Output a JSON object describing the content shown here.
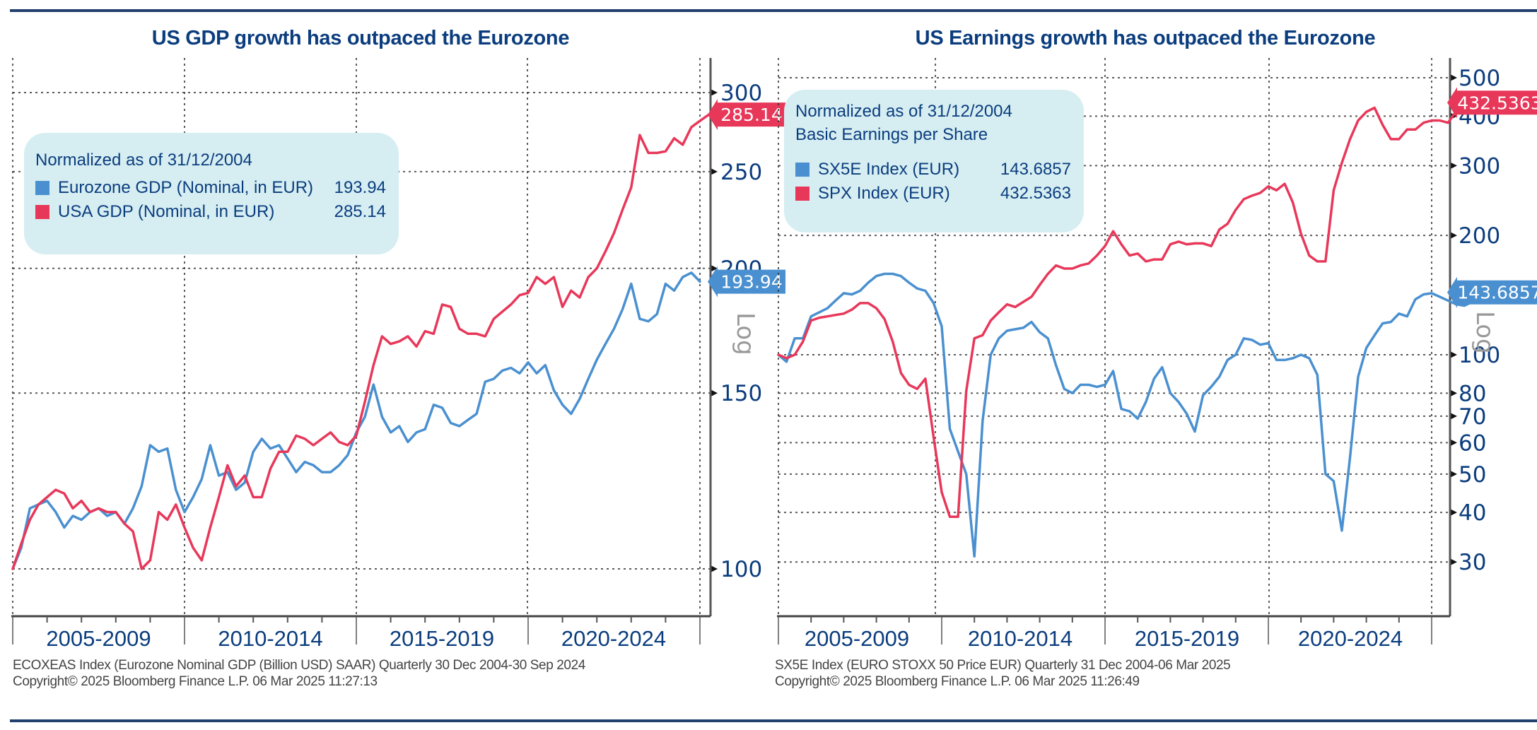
{
  "page": {
    "left_title": "US GDP growth has outpaced the Eurozone",
    "right_title": "US Earnings growth has outpaced the Eurozone",
    "left_footer": {
      "line1": "ECOXEAS Index (Eurozone Nominal GDP (Billion USD) SAAR) Quarterly 30 Dec 2004-30 Sep 2024",
      "line2": "Copyright© 2025 Bloomberg Finance L.P. 06 Mar 2025 11:27:13"
    },
    "right_footer": {
      "line1": "SX5E Index (EURO STOXX 50 Price EUR) Quarterly 31 Dec 2004-06 Mar 2025",
      "line2": "Copyright© 2025 Bloomberg Finance L.P. 06 Mar 2025 11:26:49"
    },
    "left_legend": {
      "heading": "Normalized as of 31/12/2004",
      "items": [
        {
          "label": "Eurozone GDP (Nominal, in EUR)",
          "value": "193.94"
        },
        {
          "label": "USA GDP (Nominal, in EUR)",
          "value": "285.14"
        }
      ]
    },
    "right_legend": {
      "heading": "Normalized as of 31/12/2004",
      "subheading": "Basic Earnings per Share",
      "items": [
        {
          "label": "SX5E Index (EUR)",
          "value": "143.6857"
        },
        {
          "label": "SPX Index (EUR)",
          "value": "432.5363"
        }
      ]
    },
    "colors": {
      "title": "#0b3d7e",
      "blue_series": "#4a90d0",
      "red_series": "#e8385a",
      "legend_bg": "#d6eef2",
      "rule": "#22406e"
    }
  },
  "chart_data": [
    {
      "type": "line",
      "title": "US GDP growth has outpaced the Eurozone",
      "xlabel": "",
      "ylabel": "Log",
      "y_scale": "log",
      "ylim": [
        90,
        305
      ],
      "yticks": [
        100,
        150,
        200,
        250,
        300
      ],
      "x_range": [
        2005.0,
        2025.0
      ],
      "x_start": 2005.0,
      "x_step": 0.25,
      "x_tick_labels": [
        "2005-2009",
        "2010-2014",
        "2015-2019",
        "2020-2024"
      ],
      "grid": true,
      "legend": "top-left",
      "series": [
        {
          "name": "Eurozone GDP (Nominal, in EUR)",
          "color": "#4a90d0",
          "last_value_label": "193.94",
          "values": [
            100,
            105,
            115,
            116,
            117,
            114,
            110,
            113,
            112,
            114,
            115,
            113,
            114,
            111,
            115,
            121,
            133,
            131,
            132,
            120,
            114,
            118,
            123,
            133,
            124,
            125,
            120,
            122,
            131,
            135,
            132,
            133,
            129,
            125,
            128,
            127,
            125,
            125,
            127,
            130,
            137,
            142,
            153,
            142,
            137,
            139,
            134,
            137,
            138,
            146,
            145,
            140,
            139,
            141,
            143,
            154,
            155,
            158,
            159,
            157,
            161,
            157,
            160,
            151,
            146,
            143,
            148,
            155,
            162,
            168,
            174,
            182,
            193,
            178,
            177,
            180,
            193,
            190,
            196,
            198,
            194
          ]
        },
        {
          "name": "USA GDP (Nominal, in EUR)",
          "color": "#e8385a",
          "last_value_label": "285.14",
          "values": [
            100,
            106,
            112,
            116,
            118,
            120,
            119,
            115,
            117,
            114,
            115,
            114,
            114,
            111,
            109,
            100,
            102,
            114,
            112,
            116,
            110,
            105,
            102,
            110,
            118,
            127,
            121,
            124,
            118,
            118,
            126,
            131,
            131,
            136,
            135,
            133,
            135,
            137,
            134,
            133,
            136,
            147,
            160,
            171,
            168,
            169,
            171,
            167,
            173,
            172,
            184,
            183,
            174,
            172,
            172,
            171,
            178,
            181,
            184,
            188,
            189,
            196,
            193,
            196,
            183,
            190,
            187,
            196,
            200,
            208,
            217,
            229,
            241,
            272,
            261,
            261,
            262,
            270,
            266,
            277,
            281,
            285
          ]
        }
      ]
    },
    {
      "type": "line",
      "title": "US Earnings growth has outpaced the Eurozone",
      "xlabel": "",
      "ylabel": "Log",
      "y_scale": "log",
      "ylim": [
        27,
        520
      ],
      "yticks": [
        30,
        40,
        50,
        60,
        70,
        80,
        100,
        200,
        300,
        400,
        500
      ],
      "x_range": [
        2005.0,
        2025.5
      ],
      "x_start": 2005.0,
      "x_step": 0.25,
      "x_tick_labels": [
        "2005-2009",
        "2010-2014",
        "2015-2019",
        "2020-2024"
      ],
      "grid": true,
      "legend": "top-left",
      "series": [
        {
          "name": "SX5E Index (EUR)",
          "color": "#4a90d0",
          "last_value_label": "143.6857",
          "values": [
            100,
            96,
            110,
            110,
            125,
            128,
            131,
            137,
            143,
            142,
            145,
            152,
            158,
            160,
            160,
            158,
            152,
            147,
            145,
            135,
            118,
            65,
            57,
            50,
            31,
            68,
            100,
            110,
            115,
            116,
            117,
            121,
            114,
            110,
            94,
            82,
            80,
            84,
            84,
            83,
            84,
            91,
            73,
            72,
            69,
            76,
            87,
            93,
            80,
            76,
            71,
            64,
            79,
            83,
            88,
            97,
            100,
            110,
            109,
            106,
            107,
            97,
            97,
            98,
            100,
            98,
            89,
            50,
            48,
            36,
            55,
            88,
            104,
            112,
            120,
            121,
            127,
            125,
            138,
            142,
            143,
            140,
            137,
            134,
            133,
            136
          ]
        },
        {
          "name": "SPX Index (EUR)",
          "color": "#e8385a",
          "last_value_label": "432.5363",
          "values": [
            100,
            98,
            100,
            108,
            122,
            124,
            125,
            126,
            127,
            130,
            135,
            135,
            131,
            123,
            108,
            90,
            84,
            82,
            87,
            62,
            45,
            39,
            39,
            81,
            110,
            112,
            122,
            128,
            134,
            132,
            136,
            140,
            150,
            160,
            168,
            165,
            165,
            168,
            170,
            178,
            188,
            205,
            190,
            178,
            180,
            172,
            174,
            174,
            190,
            193,
            190,
            191,
            191,
            188,
            207,
            214,
            232,
            247,
            252,
            256,
            266,
            260,
            270,
            242,
            202,
            178,
            172,
            172,
            260,
            305,
            350,
            390,
            410,
            420,
            380,
            350,
            350,
            370,
            370,
            385,
            390,
            390,
            385,
            412,
            432
          ]
        }
      ]
    }
  ]
}
